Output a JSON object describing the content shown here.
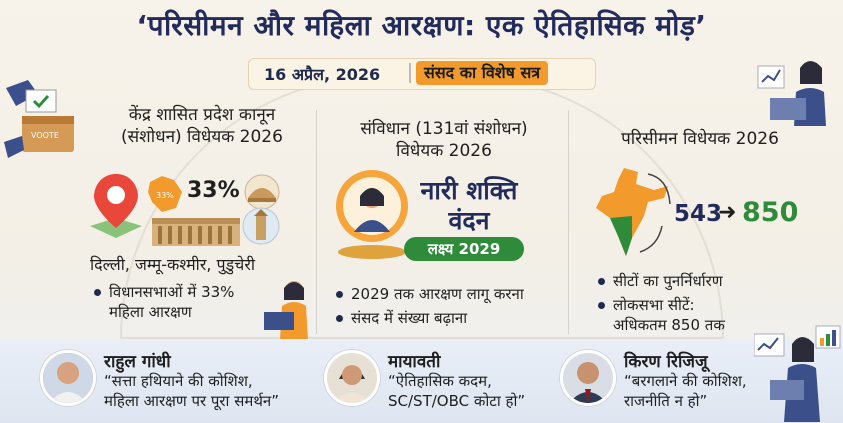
{
  "title": "‘परिसीमन और महिला आरक्षण: एक ऐतिहासिक मोड़’",
  "date": "16 अप्रैल, 2026",
  "session": "संसद का विशेष सत्र",
  "ballot_label": "VOOTE",
  "col1": {
    "heading_1": "केंद्र शासित प्रदेश कानून",
    "heading_2": "(संशोधन) विधेयक 2026",
    "percent": "33%",
    "map_badge": "33%",
    "places": "दिल्ली, जम्मू-कश्मीर, पुडुचेरी",
    "bullet_1": "विधानसभाओं में 33%",
    "bullet_1b": "महिला आरक्षण"
  },
  "col2": {
    "heading_1": "संविधान (131वां संशोधन)",
    "heading_2": "विधेयक 2026",
    "badge_1": "नारी शक्ति",
    "badge_2": "वंदन",
    "target": "लक्ष्य 2029",
    "bullet_1": "2029 तक आरक्षण लागू करना",
    "bullet_2": "संसद में संख्या बढ़ाना"
  },
  "col3": {
    "heading": "परिसीमन विधेयक 2026",
    "seats_from": "543",
    "seats_to": "850",
    "bullet_1": "सीटों का पुनर्निर्धारण",
    "bullet_2": "लोकसभा सीटें:",
    "bullet_2b": "अधिकतम 850 तक"
  },
  "quotes": [
    {
      "name": "राहुल गांधी",
      "line1": "“सत्ता हथियाने की कोशिश,",
      "line2": "महिला आरक्षण पर पूरा समर्थन”"
    },
    {
      "name": "मायावती",
      "line1": "“ऐतिहासिक कदम,",
      "line2": "SC/ST/OBC कोटा हो”"
    },
    {
      "name": "किरण रिजिजू",
      "line1": "“बरगलाने की कोशिश,",
      "line2": "राजनीति न हो”"
    }
  ],
  "colors": {
    "navy": "#232b5c",
    "saffron": "#f39a2c",
    "green": "#2e8b3a"
  }
}
